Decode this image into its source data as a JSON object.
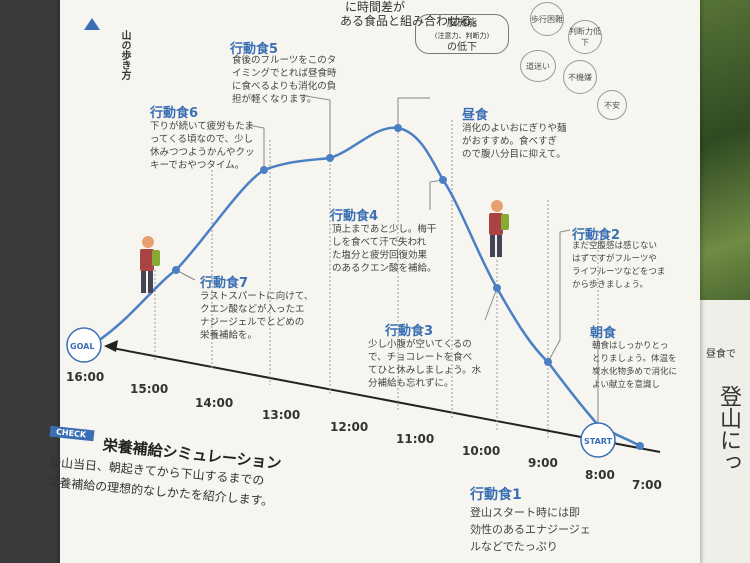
{
  "header_text": "に時間差が",
  "header_text2": "ある食品と組み合わせる。",
  "vertical_title": "山の歩き方",
  "brain": {
    "line1": "脳機能",
    "line2": "(注意力、判断力)",
    "line3": "の低下"
  },
  "bubbles": [
    "歩行困難",
    "判断力低下",
    "道迷い",
    "不機嫌",
    "不安"
  ],
  "checkpoints": [
    {
      "key": "snack5",
      "title": "行動食5",
      "body": "食後のフルーツをこのタ\nイミングでとれば昼食時\nに食べるよりも消化の負\n担が軽くなります。"
    },
    {
      "key": "snack6",
      "title": "行動食6",
      "body": "下りが続いて疲労もたま\nってくる頃なので、少し\n休みつつようかんやクッ\nキーでおやつタイム。"
    },
    {
      "key": "lunch",
      "title": "昼食",
      "body": "消化のよいおにぎりや麺\nがおすすめ。食べすぎ\nので腹八分目に抑えて。"
    },
    {
      "key": "snack4",
      "title": "行動食4",
      "body": "頂上まであと少し。梅干\nしを食べて汗で失われ\nた塩分と疲労回復効果\nのあるクエン酸を補給。"
    },
    {
      "key": "snack7",
      "title": "行動食7",
      "body": "ラストスパートに向けて、\nクエン酸などが入ったエ\nナジージェルでとどめの\n栄養補給を。"
    },
    {
      "key": "snack3",
      "title": "行動食3",
      "body": "少し小腹が空いてくるの\nで、チョコレートを食べ\nてひと休みしましょう。水\n分補給も忘れずに。"
    },
    {
      "key": "snack2",
      "title": "行動食2",
      "body": "まだ空腹感は感じない\nはずですがフルーツや\nライフルーツなどをつま\nから歩きましょう。"
    },
    {
      "key": "breakfast",
      "title": "朝食",
      "body": "朝食はしっかりとっ\nとりましょう。体温を\n炭水化物多めで消化に\nよい献立を意識し"
    },
    {
      "key": "snack1",
      "title": "行動食1",
      "body": "登山スタート時には即\n効性のあるエナジージェ\nルなどでたっぷり"
    }
  ],
  "markers": {
    "goal": "GOAL",
    "start": "START"
  },
  "times": [
    "16:00",
    "15:00",
    "14:00",
    "13:00",
    "12:00",
    "11:00",
    "10:00",
    "9:00",
    "8:00",
    "7:00"
  ],
  "check_badge": "CHECK",
  "sim_title": "栄養補給シミュレーション",
  "sim_desc": "登山当日、朝起きてから下山するまでの\n栄養補給の理想的なしかたを紹介します。",
  "side_text": "昼食で",
  "side_big": "登山にっ",
  "colors": {
    "accent": "#3a6fb3",
    "line": "#4a7fc4"
  }
}
